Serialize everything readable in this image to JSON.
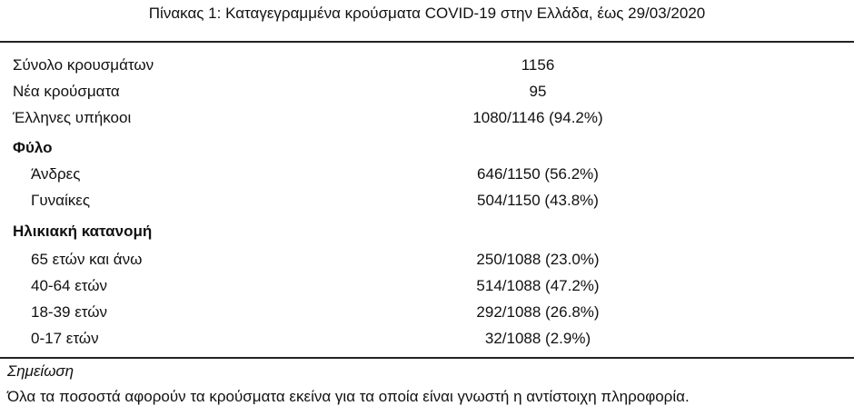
{
  "title": "Πίνακας 1: Καταγεγραμμένα κρούσματα COVID-19 στην Ελλάδα, έως 29/03/2020",
  "rows": [
    {
      "label": "Σύνολο κρουσμάτων",
      "value": "1156"
    },
    {
      "label": "Νέα κρούσματα",
      "value": "95"
    },
    {
      "label": "Έλληνες υπήκοοι",
      "value": "1080/1146 (94.2%)"
    }
  ],
  "sex": {
    "header": "Φύλο",
    "rows": [
      {
        "label": "Άνδρες",
        "value": "646/1150 (56.2%)"
      },
      {
        "label": "Γυναίκες",
        "value": "504/1150 (43.8%)"
      }
    ]
  },
  "age": {
    "header": "Ηλικιακή κατανομή",
    "rows": [
      {
        "label": "65 ετών και άνω",
        "value": "250/1088 (23.0%)"
      },
      {
        "label": "40-64 ετών",
        "value": "514/1088 (47.2%)"
      },
      {
        "label": "18-39 ετών",
        "value": "292/1088 (26.8%)"
      },
      {
        "label": "0-17 ετών",
        "value": "32/1088 (2.9%)"
      }
    ]
  },
  "note": {
    "heading": "Σημείωση",
    "text": "Όλα τα ποσοστά αφορούν τα κρούσματα εκείνα για τα οποία είναι γνωστή η αντίστοιχη πληροφορία."
  }
}
